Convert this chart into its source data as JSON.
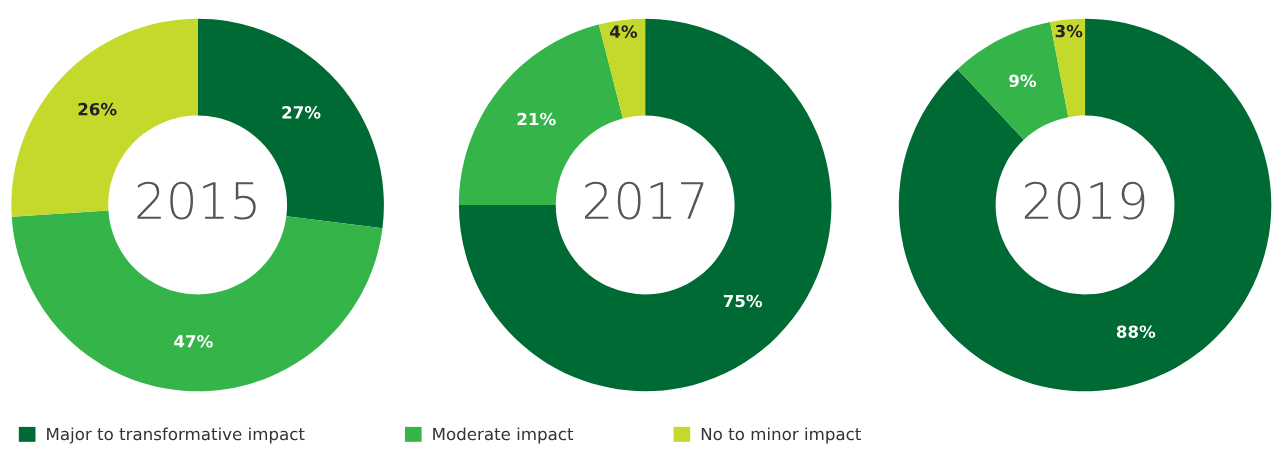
{
  "chart_data": [
    {
      "type": "donut",
      "title": "2015",
      "categories": [
        "Major to transformative impact",
        "Moderate impact",
        "No to minor impact"
      ],
      "values": [
        27,
        47,
        26
      ],
      "value_labels": [
        "27%",
        "47%",
        "26%"
      ],
      "colors": [
        "#006a35",
        "#35b44a",
        "#c5d92d"
      ],
      "legend": "bottom"
    },
    {
      "type": "donut",
      "title": "2017",
      "categories": [
        null,
        null,
        null
      ],
      "values": [
        75,
        21,
        4
      ],
      "value_labels": [
        "75%",
        "21%",
        "4%"
      ],
      "colors": [
        "#006a35",
        "#35b44a",
        "#c5d92d"
      ]
    },
    {
      "type": "donut",
      "title": "2019",
      "categories": [
        null,
        null,
        null
      ],
      "values": [
        88,
        9,
        3
      ],
      "value_labels": [
        "88%",
        "9%",
        "3%"
      ],
      "colors": [
        "#006a35",
        "#35b44a",
        "#c5d92d"
      ]
    }
  ]
}
